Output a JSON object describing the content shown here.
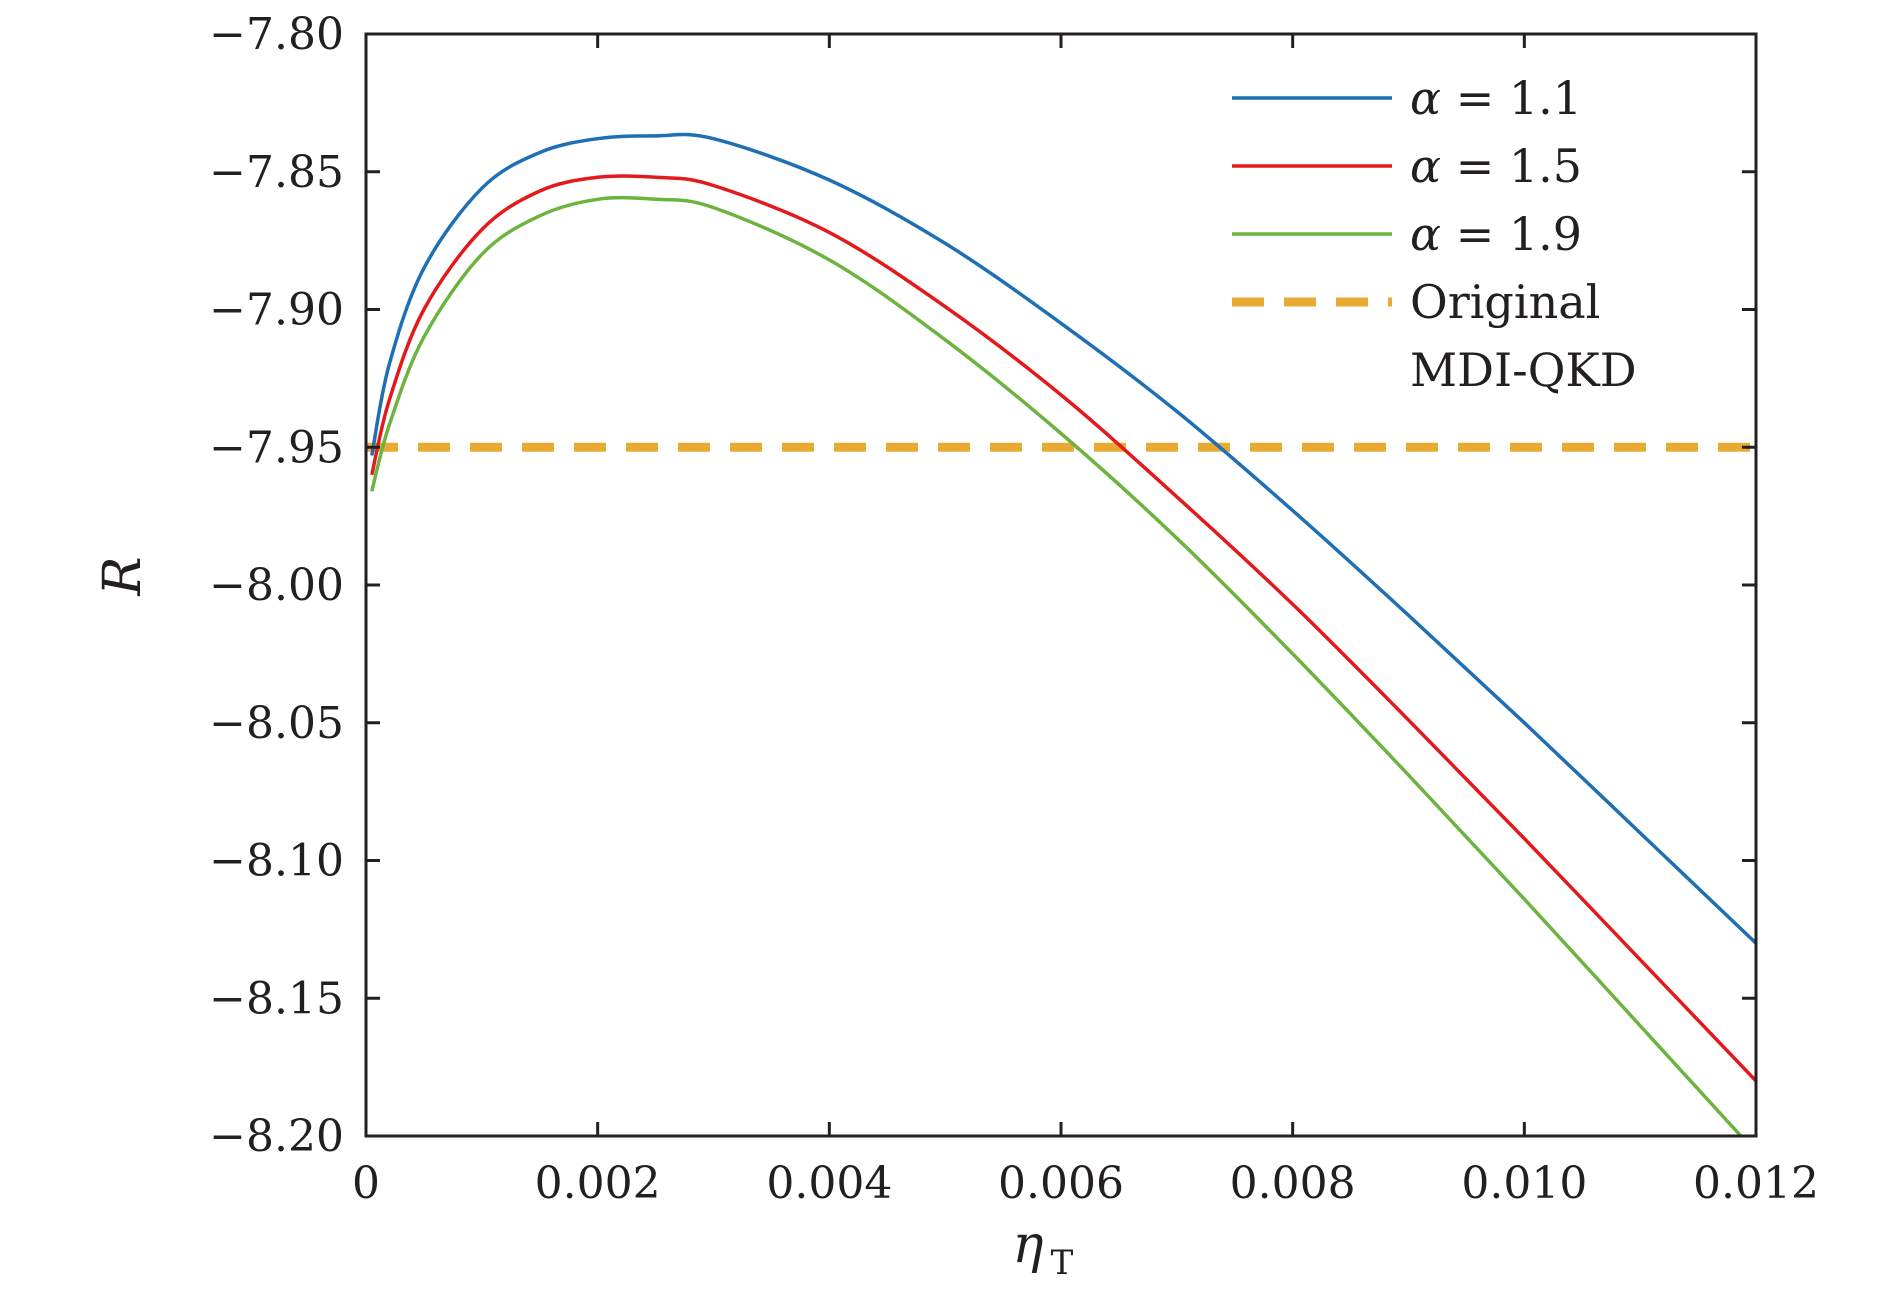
{
  "chart_data": {
    "type": "line",
    "title": "",
    "xlabel": "η",
    "xlabel_subscript": "T",
    "ylabel": "R",
    "xlim": [
      0,
      0.012
    ],
    "ylim": [
      -8.2,
      -7.8
    ],
    "xticks": [
      0,
      0.002,
      0.004,
      0.006,
      0.008,
      0.01,
      0.012
    ],
    "xtick_labels": [
      "0",
      "0.002",
      "0.004",
      "0.006",
      "0.008",
      "0.010",
      "0.012"
    ],
    "yticks": [
      -7.8,
      -7.85,
      -7.9,
      -7.95,
      -8.0,
      -8.05,
      -8.1,
      -8.15,
      -8.2
    ],
    "ytick_labels": [
      "−7.80",
      "−7.85",
      "−7.90",
      "−7.95",
      "−8.00",
      "−8.05",
      "−8.10",
      "−8.15",
      "−8.20"
    ],
    "grid": false,
    "legend_position": "top-right",
    "x": [
      5e-05,
      0.0002,
      0.0005,
      0.001,
      0.0015,
      0.002,
      0.0025,
      0.003,
      0.004,
      0.005,
      0.006,
      0.007,
      0.008,
      0.009,
      0.01,
      0.011,
      0.012
    ],
    "series": [
      {
        "name": "α = 1.1",
        "legend_symbol": "α",
        "legend_value": "= 1.1",
        "color": "#1f6fb4",
        "style": "solid",
        "values": [
          -7.953,
          -7.92,
          -7.885,
          -7.856,
          -7.843,
          -7.838,
          -7.837,
          -7.838,
          -7.853,
          -7.876,
          -7.905,
          -7.937,
          -7.973,
          -8.011,
          -8.05,
          -8.09,
          -8.13
        ]
      },
      {
        "name": "α = 1.5",
        "legend_symbol": "α",
        "legend_value": "= 1.5",
        "color": "#e3191c",
        "style": "solid",
        "values": [
          -7.96,
          -7.933,
          -7.9,
          -7.871,
          -7.857,
          -7.852,
          -7.852,
          -7.855,
          -7.872,
          -7.899,
          -7.931,
          -7.968,
          -8.007,
          -8.049,
          -8.092,
          -8.136,
          -8.18
        ]
      },
      {
        "name": "α = 1.9",
        "legend_symbol": "α",
        "legend_value": "= 1.9",
        "color": "#6db33f",
        "style": "solid",
        "values": [
          -7.966,
          -7.942,
          -7.91,
          -7.88,
          -7.866,
          -7.86,
          -7.86,
          -7.863,
          -7.882,
          -7.911,
          -7.945,
          -7.983,
          -8.025,
          -8.069,
          -8.114,
          -8.16,
          -8.206
        ]
      },
      {
        "name": "Original MDI-QKD",
        "legend_lines": [
          "Original",
          "MDI-QKD"
        ],
        "color": "#e8aa32",
        "style": "dashed",
        "values": [
          -7.95,
          -7.95,
          -7.95,
          -7.95,
          -7.95,
          -7.95,
          -7.95,
          -7.95,
          -7.95,
          -7.95,
          -7.95,
          -7.95,
          -7.95,
          -7.95,
          -7.95,
          -7.95,
          -7.95
        ]
      }
    ]
  }
}
